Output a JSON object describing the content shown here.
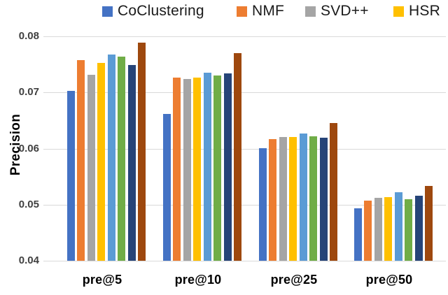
{
  "figure": {
    "background": "#FFFFFF"
  },
  "chart_data": {
    "type": "bar",
    "title": "",
    "xlabel": "",
    "ylabel": "Precision",
    "categories": [
      "pre@5",
      "pre@10",
      "pre@25",
      "pre@50"
    ],
    "ylim": [
      0.04,
      0.08
    ],
    "ytick_labels": [
      "0.04",
      "0.05",
      "0.06",
      "0.07",
      "0.08"
    ],
    "grid": true,
    "legend_position": "top",
    "legend_clipped_at_right": true,
    "series": [
      {
        "name": "CoClustering",
        "color": "#4472C4",
        "in_legend": true,
        "values": [
          0.0703,
          0.0662,
          0.0601,
          0.0494
        ]
      },
      {
        "name": "NMF",
        "color": "#ED7D31",
        "in_legend": true,
        "values": [
          0.0758,
          0.0727,
          0.0617,
          0.0507
        ]
      },
      {
        "name": "SVD++",
        "color": "#A5A5A5",
        "in_legend": true,
        "values": [
          0.0732,
          0.0724,
          0.0621,
          0.0512
        ]
      },
      {
        "name": "HSR",
        "color": "#FFC000",
        "in_legend": true,
        "values": [
          0.0753,
          0.0727,
          0.0621,
          0.0513
        ]
      },
      {
        "name": "",
        "color": "#5B9BD5",
        "in_legend": false,
        "values": [
          0.0767,
          0.0735,
          0.0627,
          0.0522
        ]
      },
      {
        "name": "",
        "color": "#70AD47",
        "in_legend": false,
        "values": [
          0.0764,
          0.073,
          0.0622,
          0.051
        ]
      },
      {
        "name": "",
        "color": "#264478",
        "in_legend": false,
        "values": [
          0.0749,
          0.0734,
          0.0619,
          0.0516
        ]
      },
      {
        "name": "",
        "color": "#9E480E",
        "in_legend": false,
        "values": [
          0.0789,
          0.077,
          0.0645,
          0.0533
        ]
      }
    ]
  }
}
